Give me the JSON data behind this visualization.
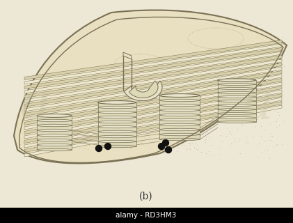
{
  "bg_color": "#ede8d5",
  "stroma_color": "#e8e0c0",
  "envelope_fill": "#e5ddb8",
  "envelope_edge": "#7a7055",
  "membrane_light": "#ede8ce",
  "membrane_dark": "#c8bfa0",
  "grana_fill": "#ddd8b8",
  "grana_edge": "#7a7055",
  "grana_top": "#e8e4cc",
  "stroma_dot": "#b0a880",
  "dot_color": "#111111",
  "line_color": "#7a7055",
  "label_b": "(b)",
  "label_fontsize": 10,
  "watermark_text": "alamy - RD3HM3",
  "watermark_bg": "#000000",
  "watermark_color": "#ffffff"
}
